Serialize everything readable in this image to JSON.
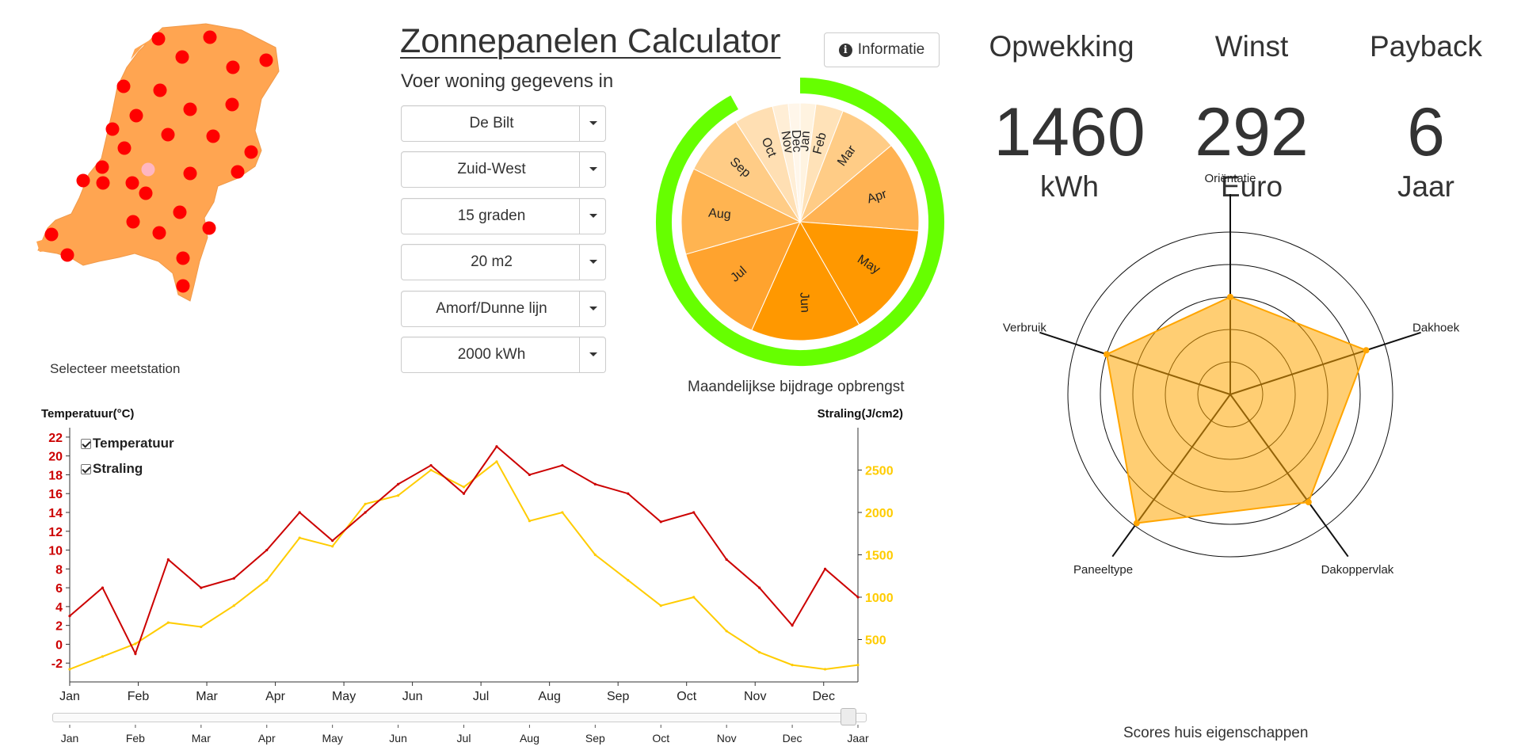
{
  "header": {
    "title": "Zonnepanelen Calculator",
    "info_label": "Informatie",
    "subtitle": "Voer woning gegevens in"
  },
  "map": {
    "caption": "Selecteer meetstation",
    "station_color": "#ff0000",
    "selected_color": "#ffb6c1",
    "land_color": "#ffa551"
  },
  "selects": [
    {
      "value": "De Bilt"
    },
    {
      "value": "Zuid-West"
    },
    {
      "value": "15 graden"
    },
    {
      "value": "20 m2"
    },
    {
      "value": "Amorf/Dunne lijn"
    },
    {
      "value": "2000 kWh"
    }
  ],
  "stats": [
    {
      "head": "Opwekking",
      "value": "1460",
      "unit": "kWh"
    },
    {
      "head": "Winst",
      "value": "292",
      "unit": "Euro"
    },
    {
      "head": "Payback",
      "value": "6",
      "unit": "Jaar"
    }
  ],
  "legend": {
    "temperature": "Temperatuur",
    "radiation": "Straling"
  },
  "slider_end_label": "Jaar",
  "chart_data": [
    {
      "type": "pie",
      "title": "Maandelijkse bijdrage opbrengst",
      "categories": [
        "Jan",
        "Feb",
        "Mar",
        "Apr",
        "May",
        "Jun",
        "Jul",
        "Aug",
        "Sep",
        "Oct",
        "Nov",
        "Dec"
      ],
      "values": [
        2.0,
        3.5,
        7.5,
        11.5,
        14.5,
        14.0,
        13.0,
        11.0,
        8.0,
        5.0,
        2.0,
        1.5
      ],
      "colors": [
        "#fff3e0",
        "#ffe2b8",
        "#ffcc86",
        "#ffb252",
        "#ff9800",
        "#ff9800",
        "#ffa32e",
        "#ffb451",
        "#ffcc86",
        "#ffdfb3",
        "#ffeed6",
        "#fff6ea"
      ],
      "progress_ring": {
        "color": "#66ff00",
        "fraction": 0.92
      }
    },
    {
      "type": "line",
      "title": "",
      "xlabel": "",
      "ylabel_left": "Temperatuur(°C)",
      "ylabel_right": "Straling(J/cm2)",
      "x_ticks": [
        "Jan",
        "Feb",
        "Mar",
        "Apr",
        "May",
        "Jun",
        "Jul",
        "Aug",
        "Sep",
        "Oct",
        "Nov",
        "Dec"
      ],
      "y_left_ticks": [
        -2,
        0,
        2,
        4,
        6,
        8,
        10,
        12,
        14,
        16,
        18,
        20,
        22
      ],
      "y_right_ticks": [
        500,
        1000,
        1500,
        2000,
        2500
      ],
      "ylim_left": [
        -4,
        23
      ],
      "ylim_right": [
        0,
        3000
      ],
      "series": [
        {
          "name": "Temperatuur",
          "axis": "left",
          "color": "#cc0000",
          "x": [
            "Jan 1",
            "Jan 15",
            "Feb 1",
            "Feb 15",
            "Mar 1",
            "Mar 15",
            "Apr 1",
            "Apr 15",
            "May 1",
            "May 15",
            "Jun 1",
            "Jun 15",
            "Jul 1",
            "Jul 15",
            "Aug 1",
            "Aug 15",
            "Sep 1",
            "Sep 15",
            "Oct 1",
            "Oct 15",
            "Nov 1",
            "Nov 15",
            "Dec 1",
            "Dec 15",
            "Dec 31"
          ],
          "values": [
            3,
            6,
            -1,
            9,
            6,
            7,
            10,
            14,
            11,
            14,
            17,
            19,
            16,
            21,
            18,
            19,
            17,
            16,
            13,
            14,
            9,
            6,
            2,
            8,
            5
          ]
        },
        {
          "name": "Straling",
          "axis": "right",
          "color": "#ffcc00",
          "x": [
            "Jan 1",
            "Jan 15",
            "Feb 1",
            "Feb 15",
            "Mar 1",
            "Mar 15",
            "Apr 1",
            "Apr 15",
            "May 1",
            "May 15",
            "Jun 1",
            "Jun 15",
            "Jul 1",
            "Jul 15",
            "Aug 1",
            "Aug 15",
            "Sep 1",
            "Sep 15",
            "Oct 1",
            "Oct 15",
            "Nov 1",
            "Nov 15",
            "Dec 1",
            "Dec 15",
            "Dec 31"
          ],
          "values": [
            150,
            300,
            450,
            700,
            650,
            900,
            1200,
            1700,
            1600,
            2100,
            2200,
            2500,
            2300,
            2600,
            1900,
            2000,
            1500,
            1200,
            900,
            1000,
            600,
            350,
            200,
            150,
            200
          ]
        }
      ],
      "slider_ticks": [
        "Jan",
        "Feb",
        "Mar",
        "Apr",
        "May",
        "Jun",
        "Jul",
        "Aug",
        "Sep",
        "Oct",
        "Nov",
        "Dec",
        "Jaar"
      ]
    },
    {
      "type": "radar",
      "title": "Scores huis eigenschappen",
      "axes": [
        "Oriëntatie",
        "Dakhoek",
        "Dakoppervlak",
        "Paneeltype",
        "Verbruik"
      ],
      "values": [
        0.6,
        0.88,
        0.82,
        0.98,
        0.8
      ],
      "rings": 5,
      "color": "#ffa500"
    }
  ]
}
